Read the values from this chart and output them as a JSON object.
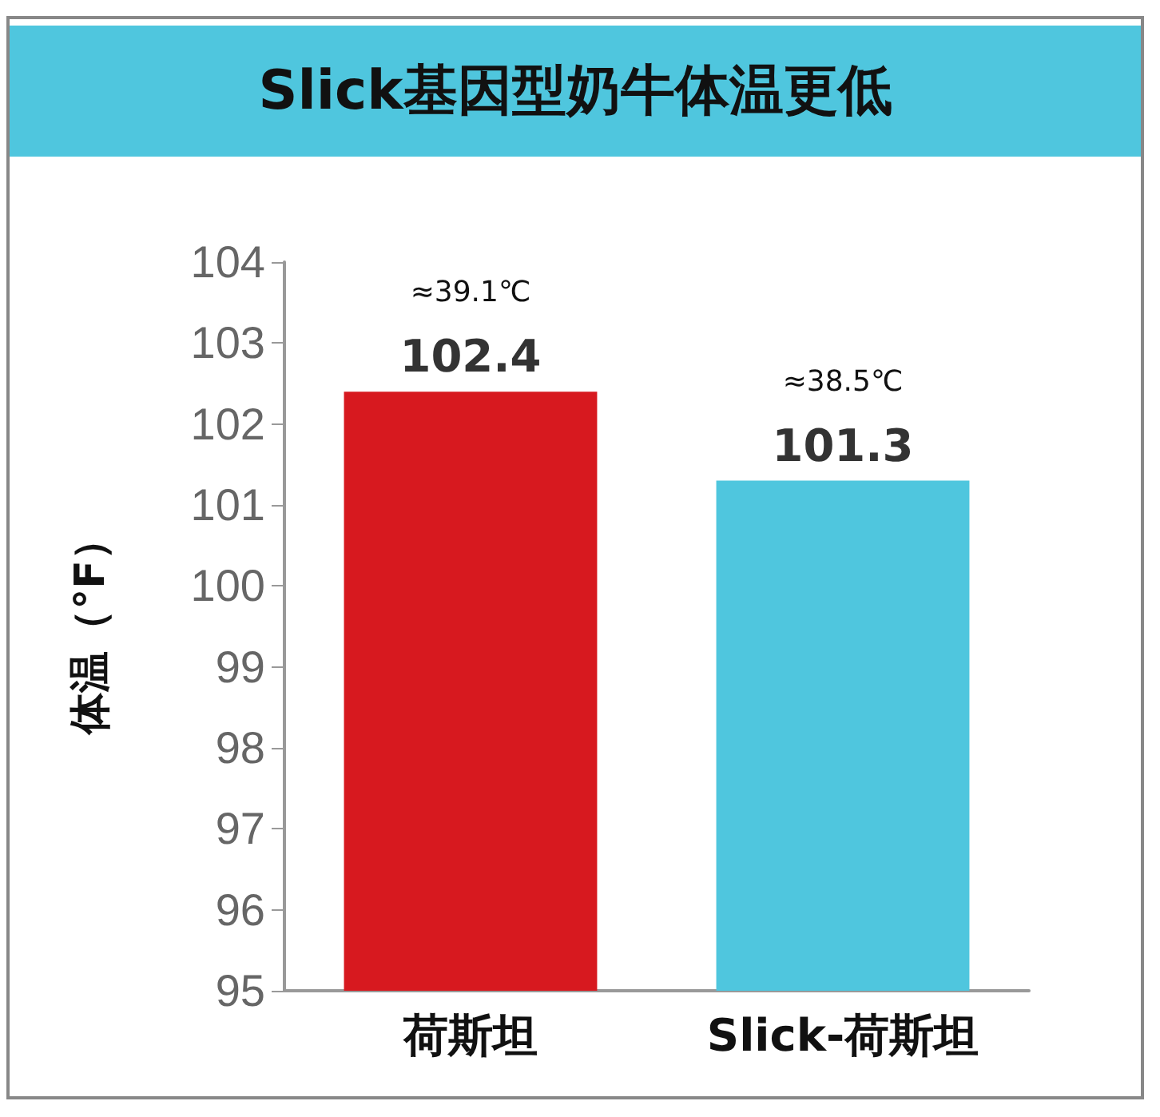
{
  "chart_data": {
    "type": "bar",
    "title": "Slick基因型奶牛体温更低",
    "ylabel": "体温（°F）",
    "categories": [
      "荷斯坦",
      "Slick-荷斯坦"
    ],
    "values": [
      102.4,
      101.3
    ],
    "colors": [
      "#d7191f",
      "#4fc6de"
    ],
    "ylim": [
      95,
      104
    ],
    "yticks": [
      95,
      96,
      97,
      98,
      99,
      100,
      101,
      102,
      103,
      104
    ],
    "grid": false,
    "data_labels": true,
    "annotations": [
      {
        "text": "≈39.1℃",
        "x": "荷斯坦",
        "y": 102.4
      },
      {
        "text": "≈38.5℃",
        "x": "Slick-荷斯坦",
        "y": 101.3
      }
    ]
  }
}
